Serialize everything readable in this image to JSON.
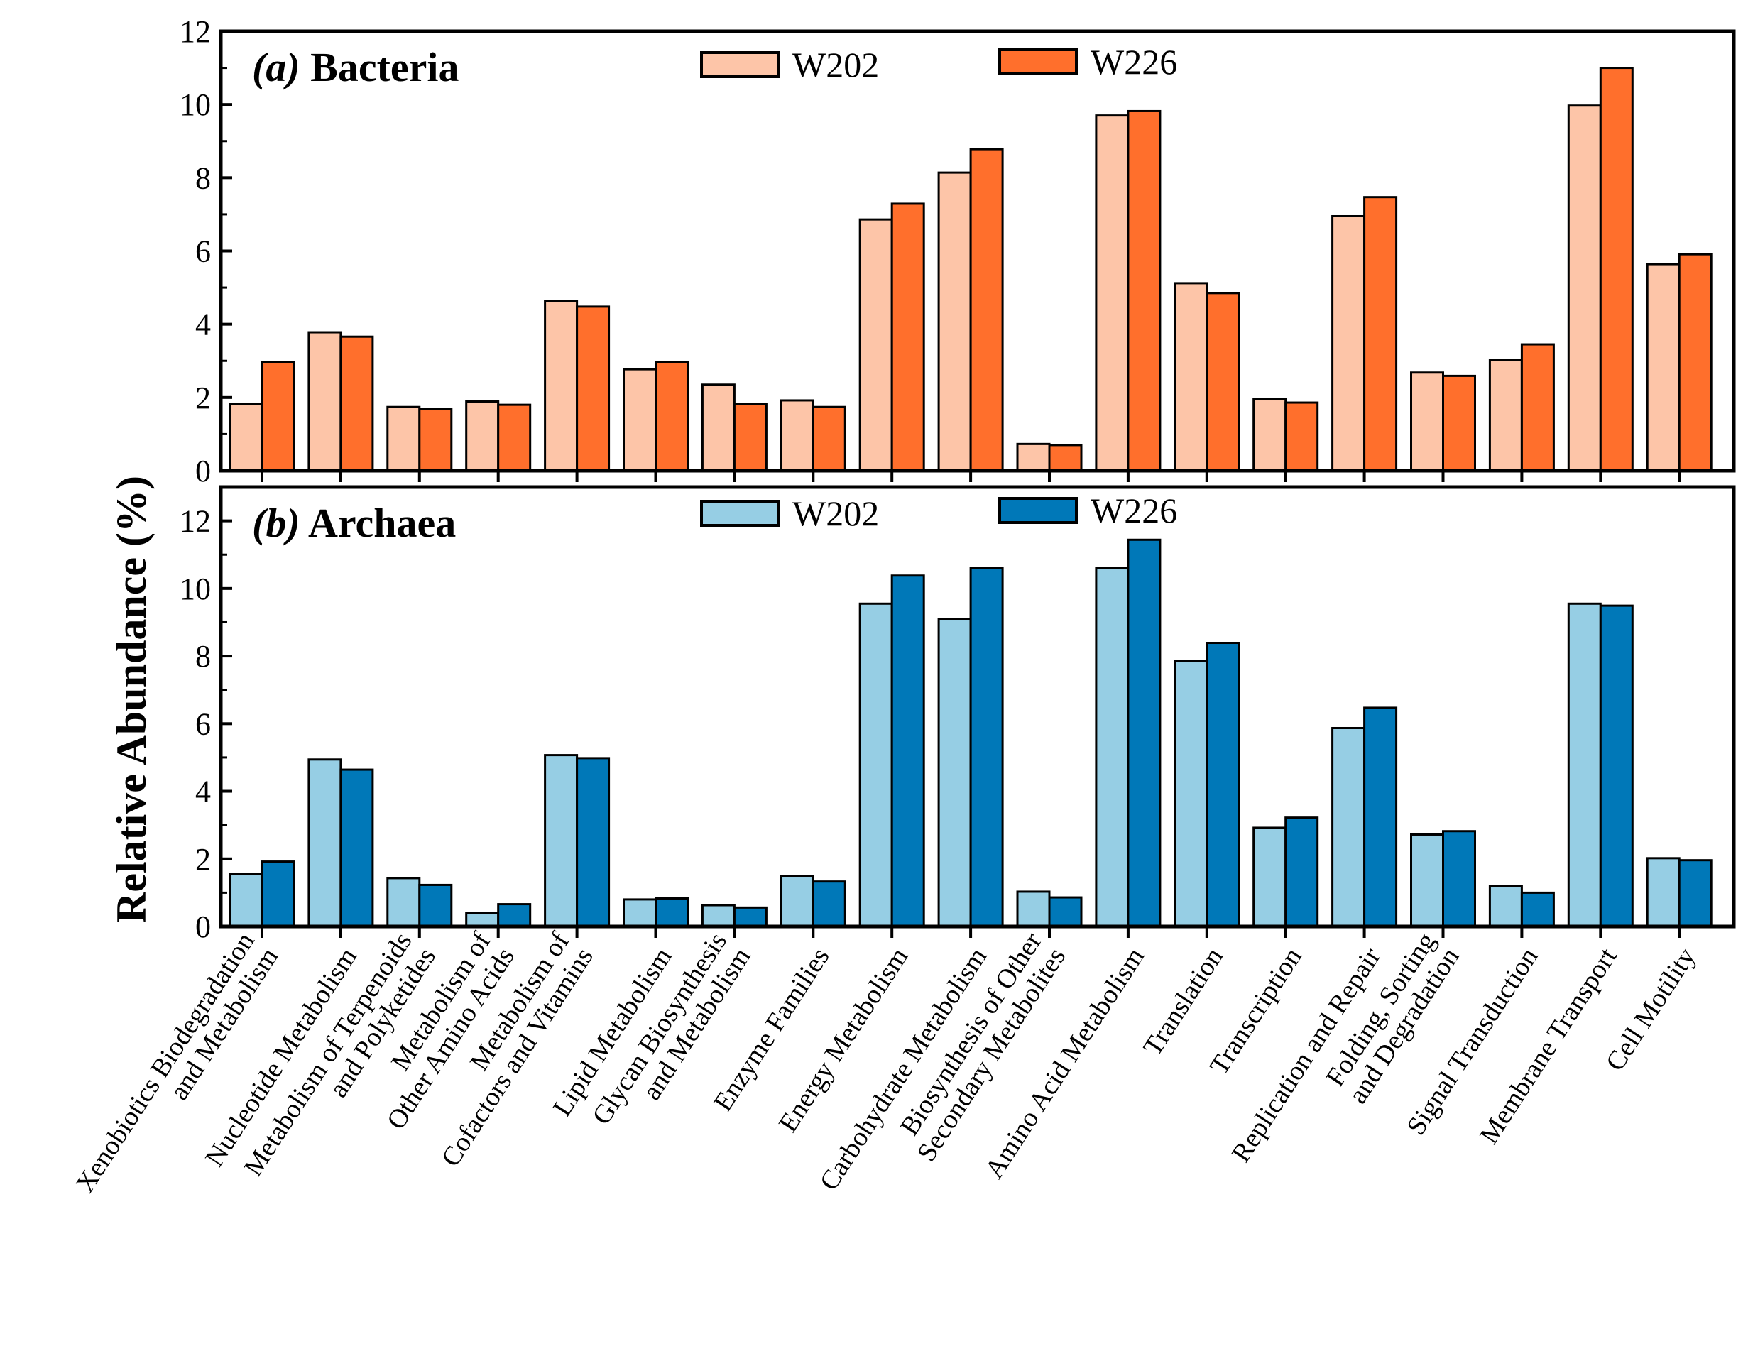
{
  "chart_data": [
    {
      "type": "bar",
      "panel": "a",
      "title_prefix": "(a)",
      "title": "Bacteria",
      "ylabel": "Relative Abundance (%)",
      "ylim": [
        0,
        12
      ],
      "yticks": [
        0,
        2,
        4,
        6,
        8,
        10,
        12
      ],
      "legend_position": "top",
      "series": [
        {
          "name": "W202",
          "color": "#FDC5A8",
          "values": [
            1.83,
            3.78,
            1.74,
            1.89,
            4.63,
            2.77,
            2.35,
            1.92,
            6.86,
            8.14,
            0.73,
            9.7,
            5.12,
            1.95,
            6.95,
            2.68,
            3.02,
            9.97,
            5.64
          ]
        },
        {
          "name": "W226",
          "color": "#FF6F2C",
          "values": [
            2.96,
            3.66,
            1.68,
            1.8,
            4.48,
            2.96,
            1.83,
            1.74,
            7.29,
            8.78,
            0.7,
            9.82,
            4.85,
            1.86,
            7.47,
            2.59,
            3.45,
            11.0,
            5.91
          ]
        }
      ]
    },
    {
      "type": "bar",
      "panel": "b",
      "title_prefix": "(b)",
      "title": "Archaea",
      "ylim": [
        0,
        13
      ],
      "yticks": [
        0,
        2,
        4,
        6,
        8,
        10,
        12
      ],
      "legend_position": "top",
      "series": [
        {
          "name": "W202",
          "color": "#96CEE4",
          "values": [
            1.56,
            4.94,
            1.43,
            0.4,
            5.07,
            0.8,
            0.63,
            1.49,
            9.55,
            9.09,
            1.03,
            10.61,
            7.86,
            2.92,
            5.87,
            2.72,
            1.19,
            9.55,
            2.02
          ]
        },
        {
          "name": "W226",
          "color": "#0078B8",
          "values": [
            1.92,
            4.64,
            1.23,
            0.66,
            4.98,
            0.83,
            0.56,
            1.33,
            10.38,
            10.61,
            0.86,
            11.44,
            8.39,
            3.22,
            6.47,
            2.82,
            1.0,
            9.49,
            1.96
          ]
        }
      ]
    }
  ],
  "categories": [
    [
      "Xenobiotics Biodegradation",
      "and Metabolism"
    ],
    [
      "Nucleotide Metabolism"
    ],
    [
      "Metabolism of Terpenoids",
      "and Polyketides"
    ],
    [
      "Metabolism of",
      "Other Amino Acids"
    ],
    [
      "Metabolism of",
      "Cofactors and Vitamins"
    ],
    [
      "Lipid Metabolism"
    ],
    [
      "Glycan Biosynthesis",
      "and Metabolism"
    ],
    [
      "Enzyme Families"
    ],
    [
      "Energy Metabolism"
    ],
    [
      "Carbohydrate Metabolism"
    ],
    [
      "Biosynthesis of Other",
      "Secondary Metabolites"
    ],
    [
      "Amino Acid Metabolism"
    ],
    [
      "Translation"
    ],
    [
      "Transcription"
    ],
    [
      "Replication and Repair"
    ],
    [
      "Folding, Sorting",
      "and Degradation"
    ],
    [
      "Signal Transduction"
    ],
    [
      "Membrane Transport"
    ],
    [
      "Cell Motility"
    ]
  ],
  "ylabel": "Relative Abundance (%)"
}
